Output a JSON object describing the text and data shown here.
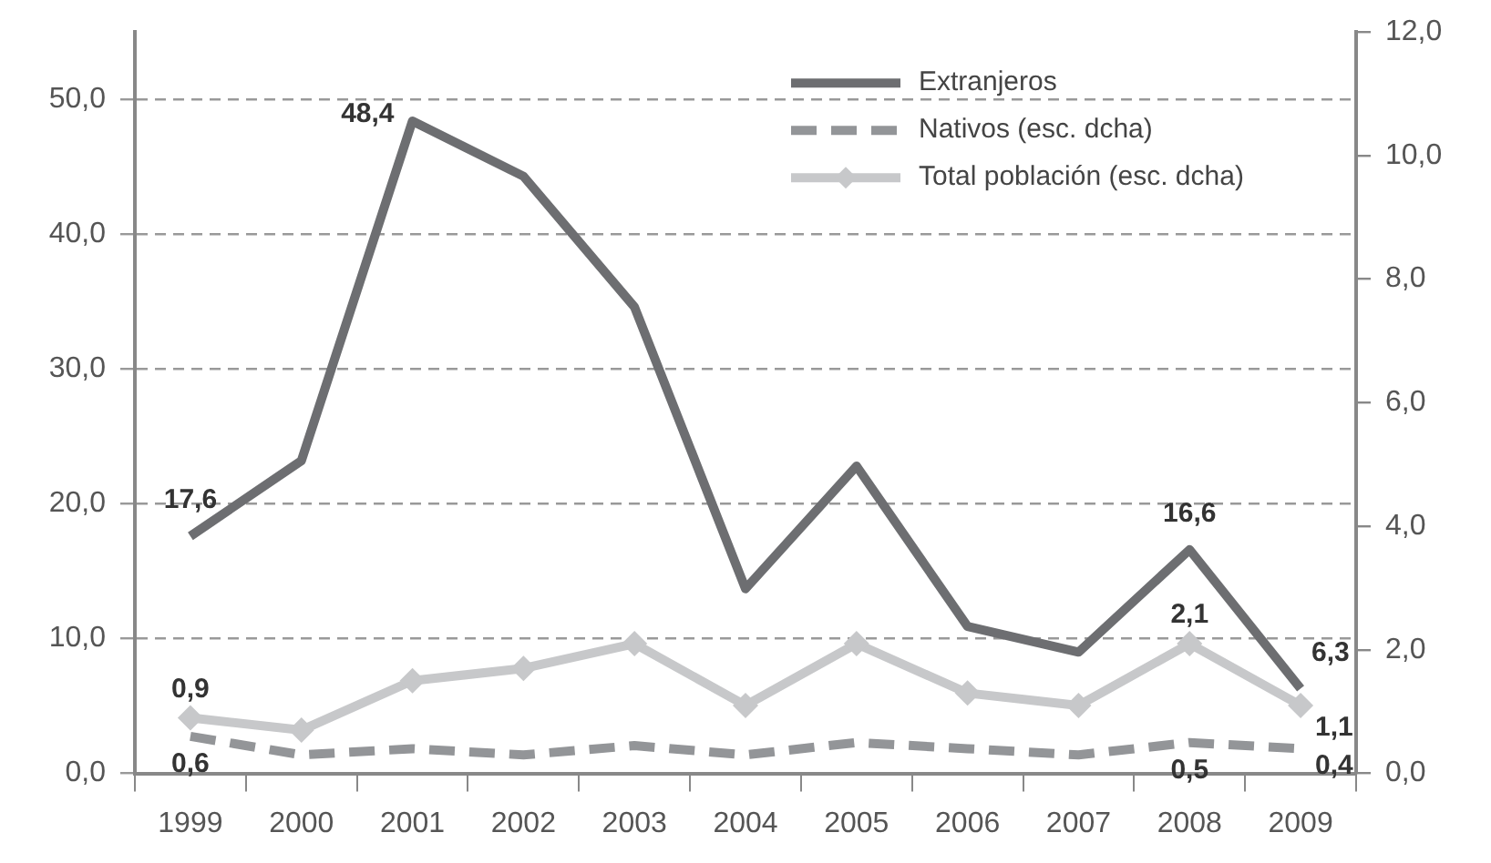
{
  "chart_data": {
    "type": "line",
    "categories": [
      "1999",
      "2000",
      "2001",
      "2002",
      "2003",
      "2004",
      "2005",
      "2006",
      "2007",
      "2008",
      "2009"
    ],
    "series": [
      {
        "name": "Extranjeros",
        "color": "#6d6e71",
        "line_style": "solid",
        "marker": "none",
        "values": [
          17.6,
          23.2,
          48.4,
          44.3,
          34.6,
          13.7,
          22.8,
          10.9,
          9.0,
          16.6,
          6.3
        ],
        "value_labels": [
          "17,6",
          null,
          "48,4",
          null,
          null,
          null,
          null,
          null,
          null,
          "16,6",
          "6,3"
        ]
      },
      {
        "name": "Nativos (esc. dcha)",
        "color": "#939598",
        "line_style": "dashed",
        "marker": "none",
        "axis": "y2",
        "values": [
          0.6,
          0.3,
          0.4,
          0.3,
          0.45,
          0.3,
          0.5,
          0.4,
          0.3,
          0.5,
          0.4
        ],
        "value_labels": [
          "0,6",
          null,
          null,
          null,
          null,
          null,
          null,
          null,
          null,
          "0,5",
          "0,4"
        ]
      },
      {
        "name": "Total población (esc. dcha)",
        "color": "#c7c8ca",
        "line_style": "solid",
        "marker": "diamond",
        "axis": "y2",
        "values": [
          0.9,
          0.7,
          1.5,
          1.7,
          2.1,
          1.1,
          2.1,
          1.3,
          1.1,
          2.1,
          1.1
        ],
        "value_labels": [
          "0,9",
          null,
          null,
          null,
          null,
          null,
          null,
          null,
          null,
          "2,1",
          "1,1"
        ]
      }
    ],
    "ylim": [
      0,
      55
    ],
    "yticks": [
      {
        "value": 0,
        "label": "0,0"
      },
      {
        "value": 10,
        "label": "10,0"
      },
      {
        "value": 20,
        "label": "20,0"
      },
      {
        "value": 30,
        "label": "30,0"
      },
      {
        "value": 40,
        "label": "40,0"
      },
      {
        "value": 50,
        "label": "50,0"
      }
    ],
    "y2lim": [
      0,
      12
    ],
    "y2ticks": [
      {
        "value": 0,
        "label": "0,0"
      },
      {
        "value": 2,
        "label": "2,0"
      },
      {
        "value": 4,
        "label": "4,0"
      },
      {
        "value": 6,
        "label": "6,0"
      },
      {
        "value": 8,
        "label": "8,0"
      },
      {
        "value": 10,
        "label": "10,0"
      },
      {
        "value": 12,
        "label": "12,0"
      }
    ],
    "grid": "y",
    "legend": "top right"
  }
}
